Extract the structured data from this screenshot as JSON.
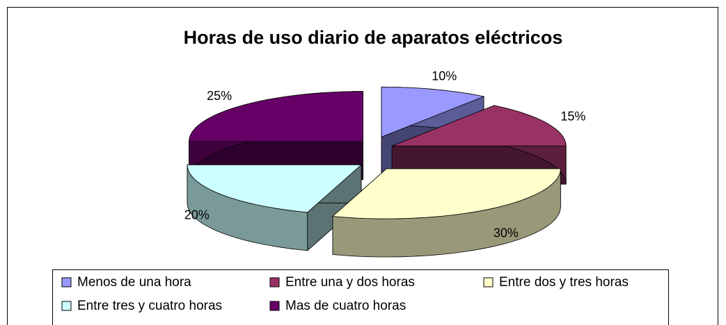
{
  "chart_data": {
    "type": "pie",
    "title": "Horas de uso diario de aparatos eléctricos",
    "categories": [
      "Menos de una hora",
      "Entre una y dos horas",
      "Entre dos y tres horas",
      "Entre tres y cuatro horas",
      "Mas de cuatro horas"
    ],
    "values": [
      10,
      15,
      30,
      20,
      25
    ],
    "value_labels": [
      "10%",
      "15%",
      "30%",
      "20%",
      "25%"
    ],
    "colors": [
      "#9999ff",
      "#993366",
      "#ffffcc",
      "#ccffff",
      "#660066"
    ],
    "legend": "bottom"
  }
}
